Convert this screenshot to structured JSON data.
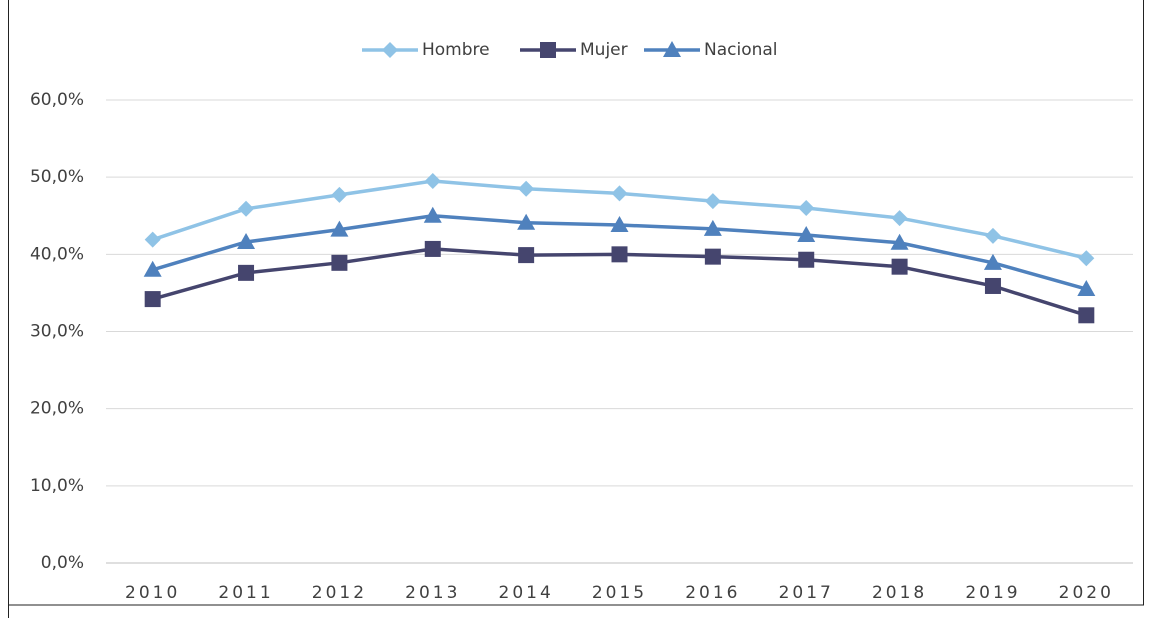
{
  "chart_data": {
    "type": "line",
    "categories": [
      "2010",
      "2011",
      "2012",
      "2013",
      "2014",
      "2015",
      "2016",
      "2017",
      "2018",
      "2019",
      "2020"
    ],
    "series": [
      {
        "name": "Hombre",
        "color": "#8fc3e6",
        "marker": "diamond",
        "values": [
          41.9,
          45.9,
          47.7,
          49.5,
          48.5,
          47.9,
          46.9,
          46.0,
          44.7,
          42.4,
          39.5
        ]
      },
      {
        "name": "Mujer",
        "color": "#45456e",
        "marker": "square",
        "values": [
          34.2,
          37.6,
          38.9,
          40.7,
          39.9,
          40.0,
          39.7,
          39.3,
          38.4,
          35.9,
          32.1
        ]
      },
      {
        "name": "Nacional",
        "color": "#4f81bd",
        "marker": "triangle",
        "values": [
          38.0,
          41.6,
          43.2,
          45.0,
          44.1,
          43.8,
          43.3,
          42.5,
          41.5,
          38.9,
          35.5
        ]
      }
    ],
    "ylim": [
      0,
      60
    ],
    "yticks": [
      {
        "value": 0,
        "label": "0,0%"
      },
      {
        "value": 10,
        "label": "10,0%"
      },
      {
        "value": 20,
        "label": "20,0%"
      },
      {
        "value": 30,
        "label": "30,0%"
      },
      {
        "value": 40,
        "label": "40,0%"
      },
      {
        "value": 50,
        "label": "50,0%"
      },
      {
        "value": 60,
        "label": "60,0%"
      }
    ],
    "grid": true,
    "legend": "top"
  }
}
